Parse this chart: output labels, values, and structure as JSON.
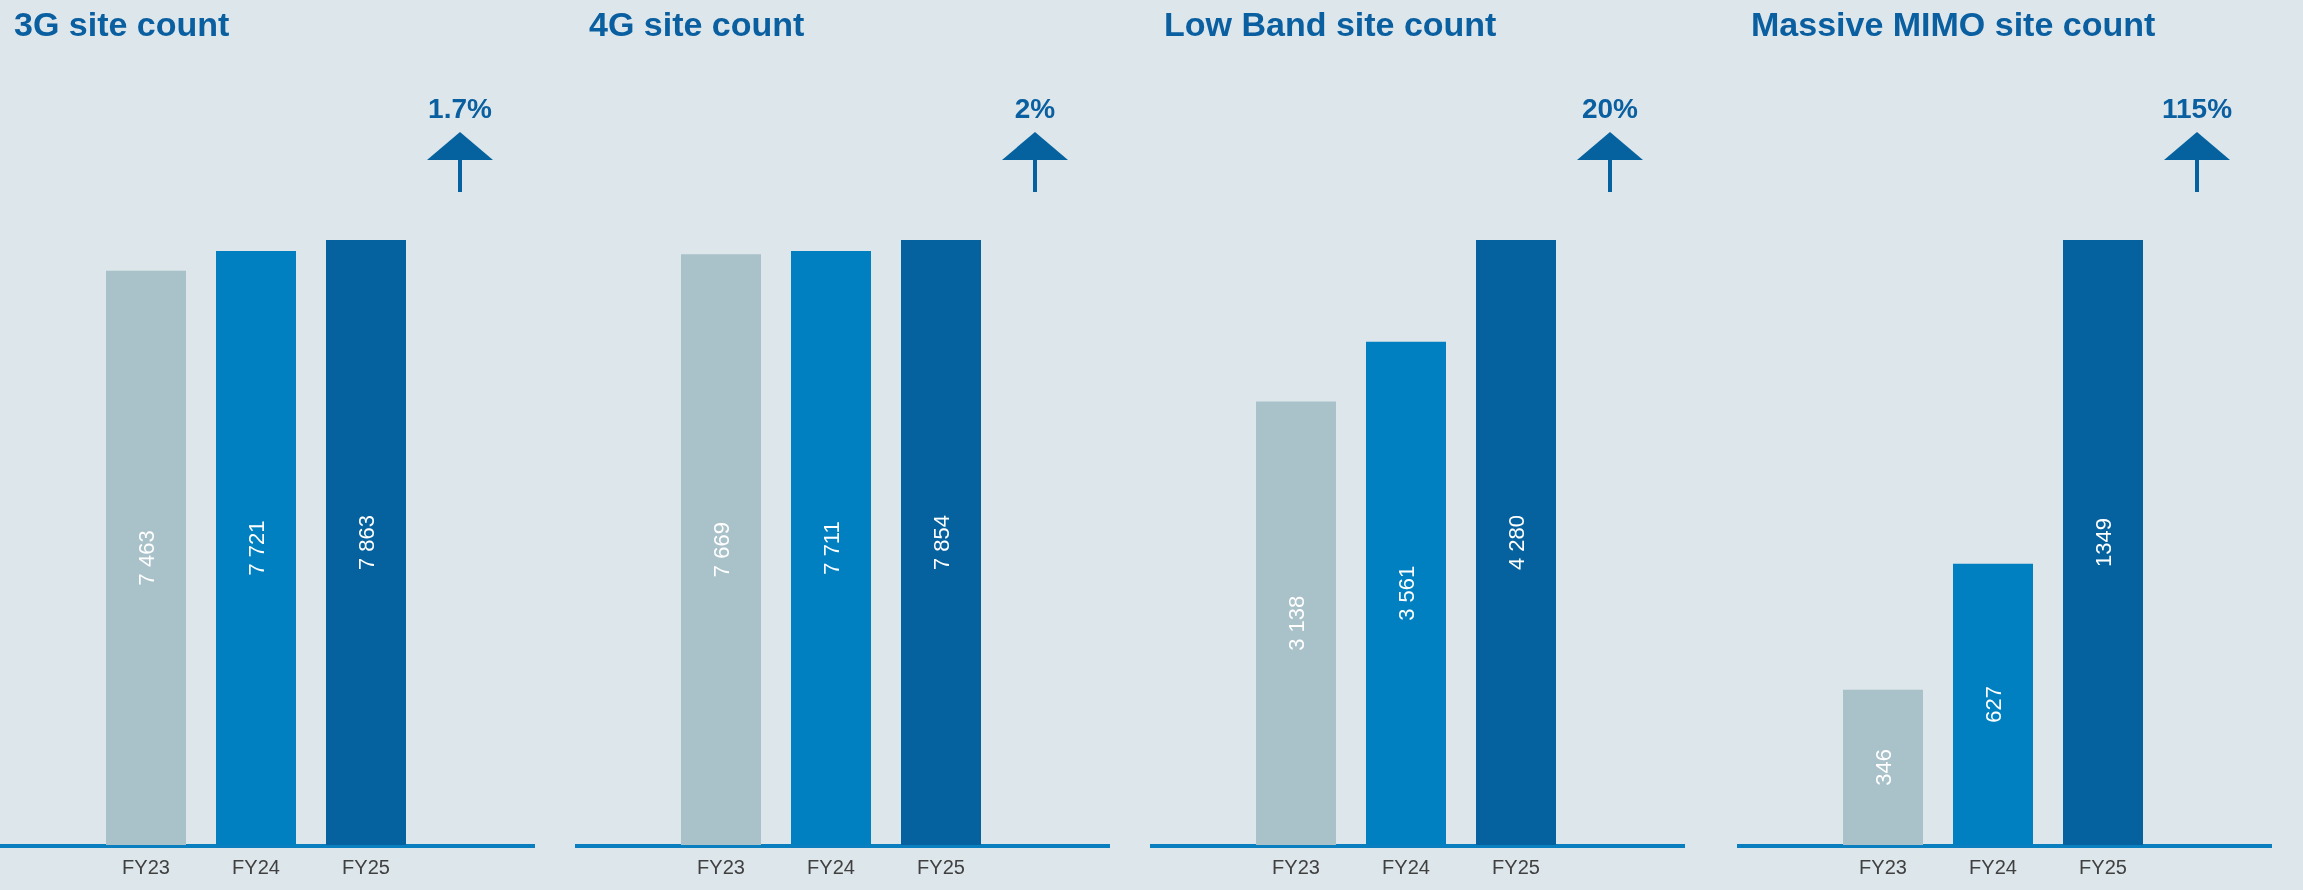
{
  "chart_data": [
    {
      "type": "bar",
      "title": "3G site count",
      "categories": [
        "FY23",
        "FY24",
        "FY25"
      ],
      "values": [
        7463,
        7721,
        7863
      ],
      "value_labels": [
        "7 463",
        "7 721",
        "7 863"
      ],
      "colors": [
        "#a9c1c9",
        "#0080c0",
        "#05629e"
      ],
      "annotations": [
        "1.7%"
      ],
      "tick_labels": "x"
    },
    {
      "type": "bar",
      "title": "4G site count",
      "categories": [
        "FY23",
        "FY24",
        "FY25"
      ],
      "values": [
        7669,
        7711,
        7854
      ],
      "value_labels": [
        "7 669",
        "7 711",
        "7 854"
      ],
      "colors": [
        "#a9c1c9",
        "#0080c0",
        "#05629e"
      ],
      "annotations": [
        "2%"
      ],
      "tick_labels": "x"
    },
    {
      "type": "bar",
      "title": "Low Band site count",
      "categories": [
        "FY23",
        "FY24",
        "FY25"
      ],
      "values": [
        3138,
        3561,
        4280
      ],
      "value_labels": [
        "3 138",
        "3 561",
        "4 280"
      ],
      "colors": [
        "#a9c1c9",
        "#0080c0",
        "#05629e"
      ],
      "annotations": [
        "20%"
      ],
      "tick_labels": "x"
    },
    {
      "type": "bar",
      "title": "Massive MIMO site count",
      "categories": [
        "FY23",
        "FY24",
        "FY25"
      ],
      "values": [
        346,
        627,
        1349
      ],
      "value_labels": [
        "346",
        "627",
        "1349"
      ],
      "colors": [
        "#a9c1c9",
        "#0080c0",
        "#05629e"
      ],
      "annotations": [
        "115%"
      ],
      "tick_labels": "x"
    }
  ]
}
